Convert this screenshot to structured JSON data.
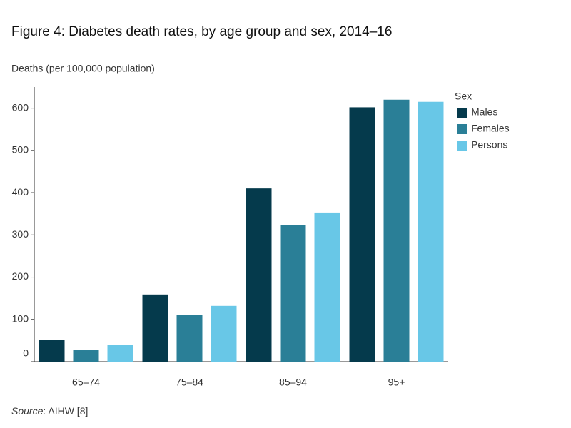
{
  "chart_data": {
    "type": "bar",
    "title": "Figure 4: Diabetes death rates, by age group and sex, 2014–16",
    "y_label": "Deaths (per 100,000 population)",
    "categories": [
      "65–74",
      "75–84",
      "85–94",
      "95+"
    ],
    "series": [
      {
        "name": "Males",
        "color": "#053a4c",
        "values": [
          51,
          159,
          410,
          602
        ]
      },
      {
        "name": "Females",
        "color": "#2a7f97",
        "values": [
          27,
          110,
          324,
          620
        ]
      },
      {
        "name": "Persons",
        "color": "#68c7e7",
        "values": [
          39,
          132,
          353,
          615
        ]
      }
    ],
    "legend_title": "Sex",
    "legend_position": "right",
    "ylim": [
      0,
      650
    ],
    "yticks": [
      0,
      100,
      200,
      300,
      400,
      500,
      600
    ],
    "grid": false
  },
  "source": {
    "label": "Source",
    "text": ": AIHW [8]"
  }
}
